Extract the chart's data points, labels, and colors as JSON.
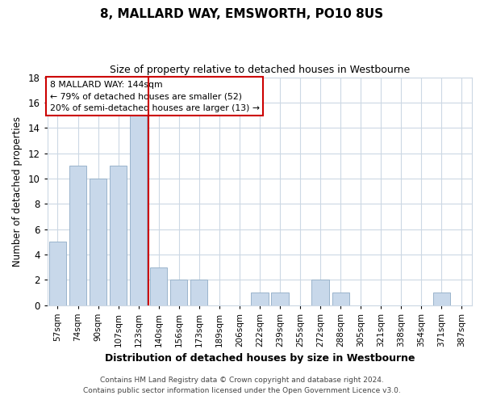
{
  "title": "8, MALLARD WAY, EMSWORTH, PO10 8US",
  "subtitle": "Size of property relative to detached houses in Westbourne",
  "xlabel": "Distribution of detached houses by size in Westbourne",
  "ylabel": "Number of detached properties",
  "footer_lines": [
    "Contains HM Land Registry data © Crown copyright and database right 2024.",
    "Contains public sector information licensed under the Open Government Licence v3.0."
  ],
  "categories": [
    "57sqm",
    "74sqm",
    "90sqm",
    "107sqm",
    "123sqm",
    "140sqm",
    "156sqm",
    "173sqm",
    "189sqm",
    "206sqm",
    "222sqm",
    "239sqm",
    "255sqm",
    "272sqm",
    "288sqm",
    "305sqm",
    "321sqm",
    "338sqm",
    "354sqm",
    "371sqm",
    "387sqm"
  ],
  "values": [
    5,
    11,
    10,
    11,
    15,
    3,
    2,
    2,
    0,
    0,
    1,
    1,
    0,
    2,
    1,
    0,
    0,
    0,
    0,
    1,
    0
  ],
  "bar_color": "#c8d8ea",
  "bar_edge_color": "#9ab4cc",
  "marker_line_index": 5,
  "marker_line_color": "#cc0000",
  "ylim": [
    0,
    18
  ],
  "yticks": [
    0,
    2,
    4,
    6,
    8,
    10,
    12,
    14,
    16,
    18
  ],
  "annotation_box_text": [
    "8 MALLARD WAY: 144sqm",
    "← 79% of detached houses are smaller (52)",
    "20% of semi-detached houses are larger (13) →"
  ],
  "annotation_box_edge_color": "#cc0000",
  "annotation_box_bg_color": "#ffffff",
  "bg_color": "#ffffff",
  "plot_bg_color": "#ffffff",
  "grid_color": "#ccd8e4"
}
